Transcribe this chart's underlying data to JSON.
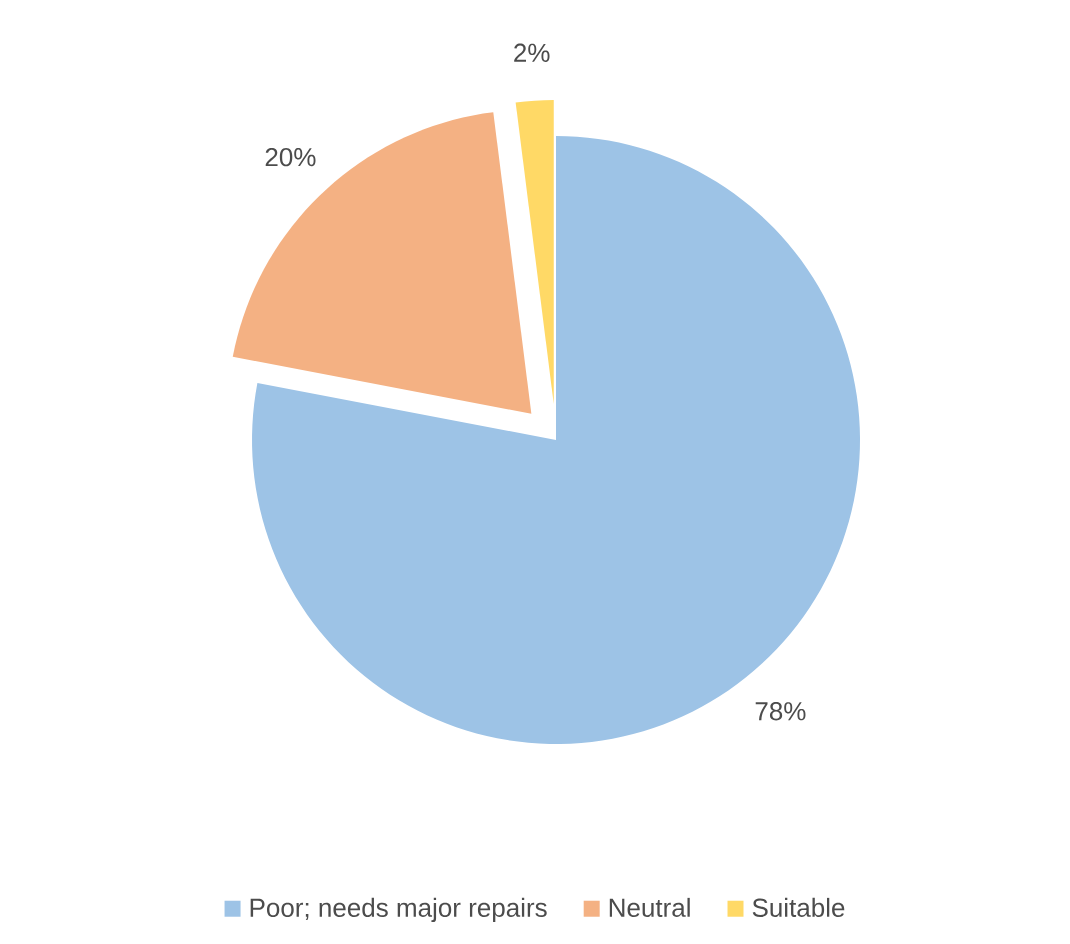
{
  "chart_data": {
    "type": "pie",
    "categories": [
      "Poor; needs major repairs",
      "Neutral",
      "Suitable"
    ],
    "values": [
      78,
      20,
      2
    ],
    "colors": [
      "#9dc3e6",
      "#f4b183",
      "#ffd966"
    ],
    "value_labels": [
      "78%",
      "20%",
      "2%"
    ],
    "legend": "bottom"
  }
}
